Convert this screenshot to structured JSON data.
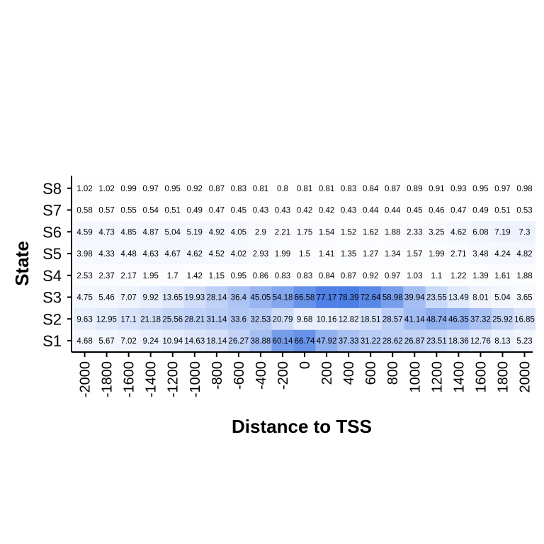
{
  "chart_data": {
    "type": "heatmap",
    "xlabel": "Distance to TSS",
    "ylabel": "State",
    "x": [
      "-2000",
      "-1800",
      "-1600",
      "-1400",
      "-1200",
      "-1000",
      "-800",
      "-600",
      "-400",
      "-200",
      "0",
      "200",
      "400",
      "600",
      "800",
      "1000",
      "1200",
      "1400",
      "1600",
      "1800",
      "2000"
    ],
    "y": [
      "S1",
      "S2",
      "S3",
      "S4",
      "S5",
      "S6",
      "S7",
      "S8"
    ],
    "values": [
      [
        "4.68",
        "5.67",
        "7.02",
        "9.24",
        "10.94",
        "14.63",
        "18.14",
        "26.27",
        "38.88",
        "60.14",
        "66.74",
        "47.92",
        "37.33",
        "31.22",
        "28.62",
        "26.87",
        "23.51",
        "18.36",
        "12.76",
        "8.13",
        "5.23"
      ],
      [
        "9.63",
        "12.95",
        "17.1",
        "21.18",
        "25.56",
        "28.21",
        "31.14",
        "33.6",
        "32.53",
        "20.79",
        "9.68",
        "10.16",
        "12.82",
        "18.51",
        "28.57",
        "41.14",
        "48.74",
        "46.35",
        "37.32",
        "25.92",
        "16.85"
      ],
      [
        "4.75",
        "5.46",
        "7.07",
        "9.92",
        "13.65",
        "19.93",
        "28.14",
        "36.4",
        "45.05",
        "54.18",
        "66.58",
        "77.17",
        "78.39",
        "72.64",
        "58.98",
        "39.94",
        "23.55",
        "13.49",
        "8.01",
        "5.04",
        "3.65"
      ],
      [
        "2.53",
        "2.37",
        "2.17",
        "1.95",
        "1.7",
        "1.42",
        "1.15",
        "0.95",
        "0.86",
        "0.83",
        "0.83",
        "0.84",
        "0.87",
        "0.92",
        "0.97",
        "1.03",
        "1.1",
        "1.22",
        "1.39",
        "1.61",
        "1.88"
      ],
      [
        "3.98",
        "4.33",
        "4.48",
        "4.63",
        "4.67",
        "4.62",
        "4.52",
        "4.02",
        "2.93",
        "1.99",
        "1.5",
        "1.41",
        "1.35",
        "1.27",
        "1.34",
        "1.57",
        "1.99",
        "2.71",
        "3.48",
        "4.24",
        "4.82"
      ],
      [
        "4.59",
        "4.73",
        "4.85",
        "4.87",
        "5.04",
        "5.19",
        "4.92",
        "4.05",
        "2.9",
        "2.21",
        "1.75",
        "1.54",
        "1.52",
        "1.62",
        "1.88",
        "2.33",
        "3.25",
        "4.62",
        "6.08",
        "7.19",
        "7.3"
      ],
      [
        "0.58",
        "0.57",
        "0.55",
        "0.54",
        "0.51",
        "0.49",
        "0.47",
        "0.45",
        "0.43",
        "0.43",
        "0.42",
        "0.42",
        "0.43",
        "0.44",
        "0.44",
        "0.45",
        "0.46",
        "0.47",
        "0.49",
        "0.51",
        "0.53"
      ],
      [
        "1.02",
        "1.02",
        "0.99",
        "0.97",
        "0.95",
        "0.92",
        "0.87",
        "0.83",
        "0.81",
        "0.8",
        "0.81",
        "0.81",
        "0.83",
        "0.84",
        "0.87",
        "0.89",
        "0.91",
        "0.93",
        "0.95",
        "0.97",
        "0.98"
      ]
    ],
    "color_low": "#ffffff",
    "color_high": "#4c7fe6",
    "grid": false,
    "legend": "none"
  }
}
